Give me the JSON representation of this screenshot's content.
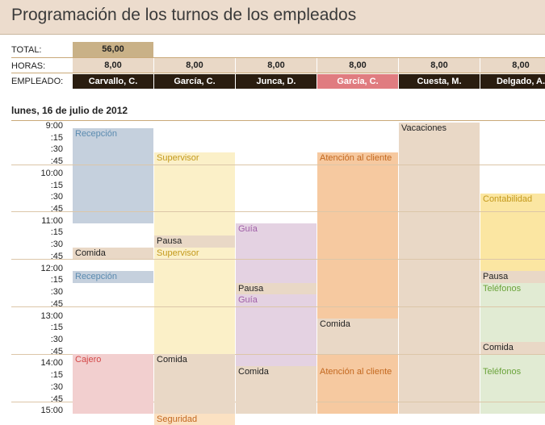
{
  "title": "Programación de los turnos de los empleados",
  "labels": {
    "total": "TOTAL:",
    "horas": "HORAS:",
    "empleado": "EMPLEADO:"
  },
  "total_value": "56,00",
  "employees": [
    {
      "name": "Carvallo, C.",
      "hours": "8,00",
      "highlight": false
    },
    {
      "name": "García, C.",
      "hours": "8,00",
      "highlight": false
    },
    {
      "name": "Junca, D.",
      "hours": "8,00",
      "highlight": false
    },
    {
      "name": "García, C.",
      "hours": "8,00",
      "highlight": true
    },
    {
      "name": "Cuesta, M.",
      "hours": "8,00",
      "highlight": false
    },
    {
      "name": "Delgado, A.",
      "hours": "8,00",
      "highlight": false
    }
  ],
  "date": "lunes, 16 de julio de 2012",
  "time_slots": [
    "9:00",
    ":15",
    ":30",
    ":45",
    "10:00",
    ":15",
    ":30",
    ":45",
    "11:00",
    ":15",
    ":30",
    ":45",
    "12:00",
    ":15",
    ":30",
    ":45",
    "13:00",
    ":15",
    ":30",
    ":45",
    "14:00",
    ":15",
    ":30",
    ":45",
    "15:00"
  ],
  "colors": {
    "recepcion": "#c5d0dd",
    "recepcion_text": "#5b8bb0",
    "supervisor": "#fbf0c8",
    "supervisor_text": "#c49a1d",
    "atencion": "#f6c9a0",
    "atencion_text": "#c3681f",
    "guia": "#e4d2e2",
    "guia_text": "#a060a8",
    "contabilidad": "#fbe6a2",
    "contabilidad_text": "#c49a1d",
    "telefonos": "#e1ebd3",
    "telefonos_text": "#6aa33a",
    "cajero": "#f2cfcf",
    "cajero_text": "#d34848",
    "seguridad": "#fbe1c2",
    "seguridad_text": "#c3681f",
    "neutral": "#e9d8c6",
    "neutral_text": "#222222"
  },
  "blocks": [
    {
      "col": 0,
      "start": 0.5,
      "end": 8.5,
      "color": "recepcion"
    },
    {
      "col": 1,
      "start": 2.5,
      "end": 19.5,
      "color": "supervisor"
    },
    {
      "col": 2,
      "start": 8.5,
      "end": 20.5,
      "color": "guia"
    },
    {
      "col": 3,
      "start": 2.5,
      "end": 24.5,
      "color": "atencion"
    },
    {
      "col": 4,
      "start": 0,
      "end": 24.5,
      "color": "neutral"
    },
    {
      "col": 5,
      "start": 6,
      "end": 12.5,
      "color": "contabilidad"
    },
    {
      "col": 5,
      "start": 13.5,
      "end": 24.5,
      "color": "telefonos"
    }
  ],
  "shifts": [
    {
      "col": 0,
      "start": 0.5,
      "end": 1.5,
      "label": "Recepción",
      "color": "recepcion"
    },
    {
      "col": 0,
      "start": 10.5,
      "end": 11.5,
      "label": "Comida",
      "color": "neutral"
    },
    {
      "col": 0,
      "start": 12.5,
      "end": 13.5,
      "label": "Recepción",
      "color": "recepcion"
    },
    {
      "col": 0,
      "start": 19.5,
      "end": 24.5,
      "label": "Cajero",
      "color": "cajero"
    },
    {
      "col": 1,
      "start": 2.5,
      "end": 3.5,
      "label": "Supervisor",
      "color": "supervisor"
    },
    {
      "col": 1,
      "start": 9.5,
      "end": 10.5,
      "label": "Pausa",
      "color": "neutral"
    },
    {
      "col": 1,
      "start": 10.5,
      "end": 11.5,
      "label": "Supervisor",
      "color": "supervisor"
    },
    {
      "col": 1,
      "start": 19.5,
      "end": 24.5,
      "label": "Comida",
      "color": "neutral"
    },
    {
      "col": 1,
      "start": 24.5,
      "end": 25.5,
      "label": "Seguridad",
      "color": "seguridad"
    },
    {
      "col": 2,
      "start": 8.5,
      "end": 9.5,
      "label": "Guía",
      "color": "guia"
    },
    {
      "col": 2,
      "start": 13.5,
      "end": 14.5,
      "label": "Pausa",
      "color": "neutral"
    },
    {
      "col": 2,
      "start": 14.5,
      "end": 15.5,
      "label": "Guía",
      "color": "guia"
    },
    {
      "col": 2,
      "start": 20.5,
      "end": 24.5,
      "label": "Comida",
      "color": "neutral"
    },
    {
      "col": 3,
      "start": 2.5,
      "end": 3.5,
      "label": "Atención al cliente",
      "color": "atencion"
    },
    {
      "col": 3,
      "start": 16.5,
      "end": 19.5,
      "label": "Comida",
      "color": "neutral"
    },
    {
      "col": 3,
      "start": 20.5,
      "end": 21.5,
      "label": "Atención al cliente",
      "color": "atencion"
    },
    {
      "col": 4,
      "start": 0,
      "end": 1,
      "label": "Vacaciones",
      "color": "neutral"
    },
    {
      "col": 5,
      "start": 6,
      "end": 7,
      "label": "Contabilidad",
      "color": "contabilidad"
    },
    {
      "col": 5,
      "start": 12.5,
      "end": 13.5,
      "label": "Pausa",
      "color": "neutral"
    },
    {
      "col": 5,
      "start": 13.5,
      "end": 14.5,
      "label": "Teléfonos",
      "color": "telefonos"
    },
    {
      "col": 5,
      "start": 18.5,
      "end": 19.5,
      "label": "Comida",
      "color": "neutral"
    },
    {
      "col": 5,
      "start": 20.5,
      "end": 21.5,
      "label": "Teléfonos",
      "color": "telefonos"
    }
  ]
}
